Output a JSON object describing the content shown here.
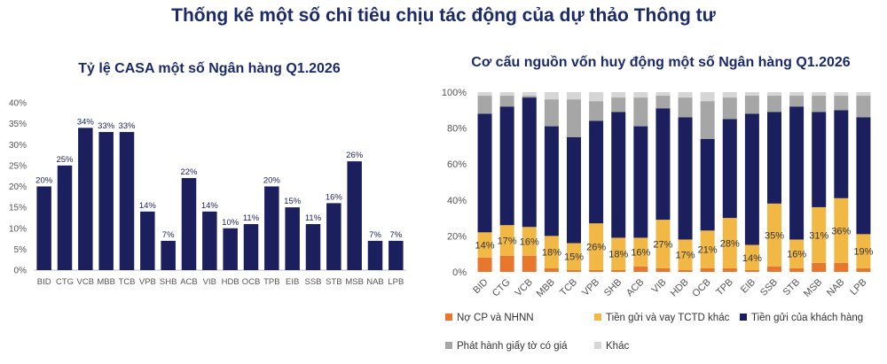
{
  "main_title": "Thống kê một số chỉ tiêu chịu tác động của dự thảo Thông tư",
  "colors": {
    "navy": "#1b1f5e",
    "orange": "#e8772e",
    "yellow": "#f2b845",
    "gray": "#a6a6a6",
    "lightgray": "#d6d6d6",
    "axis_text": "#555555",
    "title": "#1b2a6b"
  },
  "chart_data": [
    {
      "type": "bar",
      "title": "Tỷ lệ CASA một số Ngân hàng Q1.2026",
      "categories": [
        "BID",
        "CTG",
        "VCB",
        "MBB",
        "TCB",
        "VPB",
        "SHB",
        "ACB",
        "VIB",
        "HDB",
        "OCB",
        "TPB",
        "EIB",
        "SSB",
        "STB",
        "MSB",
        "NAB",
        "LPB"
      ],
      "values": [
        20,
        25,
        34,
        33,
        33,
        14,
        7,
        22,
        14,
        10,
        11,
        20,
        15,
        11,
        16,
        26,
        7,
        7
      ],
      "data_labels": [
        "20%",
        "25%",
        "34%",
        "33%",
        "33%",
        "14%",
        "7%",
        "22%",
        "14%",
        "10%",
        "11%",
        "20%",
        "15%",
        "11%",
        "16%",
        "26%",
        "7%",
        "7%"
      ],
      "yticks": [
        "0%",
        "5%",
        "10%",
        "15%",
        "20%",
        "25%",
        "30%",
        "35%",
        "40%"
      ],
      "ylim": [
        0,
        40
      ],
      "grid": false
    },
    {
      "type": "bar",
      "stacked": true,
      "title": "Cơ cấu nguồn vốn huy động một số Ngân hàng Q1.2026",
      "categories": [
        "BID",
        "CTG",
        "VCB",
        "MBB",
        "TCB",
        "VPB",
        "SHB",
        "ACB",
        "VIB",
        "HDB",
        "OCB",
        "TPB",
        "EIB",
        "SSB",
        "STB",
        "MSB",
        "NAB",
        "LPB"
      ],
      "yticks": [
        "0%",
        "20%",
        "40%",
        "60%",
        "80%",
        "100%"
      ],
      "ylim": [
        0,
        100
      ],
      "legend_position": "bottom",
      "series": [
        {
          "name": "Nợ CP và NHNN",
          "color_key": "orange",
          "values": [
            8,
            9,
            9,
            2,
            1,
            1,
            1,
            3,
            2,
            1,
            2,
            2,
            1,
            3,
            2,
            5,
            5,
            2
          ]
        },
        {
          "name": "Tiền gửi và vay TCTD khác",
          "color_key": "yellow",
          "values": [
            14,
            17,
            16,
            18,
            15,
            26,
            18,
            16,
            27,
            17,
            21,
            28,
            14,
            35,
            16,
            31,
            36,
            19
          ]
        },
        {
          "name": "Tiền gửi của khách hàng",
          "color_key": "navy",
          "values": [
            66,
            66,
            72,
            61,
            59,
            57,
            70,
            62,
            62,
            68,
            51,
            55,
            73,
            51,
            74,
            53,
            49,
            65
          ]
        },
        {
          "name": "Phát hành giấy tờ có giá",
          "color_key": "gray",
          "values": [
            10,
            6,
            1,
            15,
            21,
            11,
            8,
            16,
            7,
            11,
            21,
            12,
            10,
            9,
            6,
            9,
            8,
            12
          ]
        },
        {
          "name": "Khác",
          "color_key": "lightgray",
          "values": [
            2,
            2,
            2,
            4,
            4,
            5,
            3,
            3,
            2,
            3,
            5,
            3,
            2,
            2,
            2,
            2,
            2,
            2
          ]
        }
      ],
      "data_labels": {
        "series_index": 1,
        "labels": [
          "14%",
          "17%",
          "16%",
          "18%",
          "15%",
          "26%",
          "18%",
          "16%",
          "27%",
          "17%",
          "21%",
          "28%",
          "14%",
          "35%",
          "16%",
          "31%",
          "36%",
          "19%"
        ]
      }
    }
  ]
}
